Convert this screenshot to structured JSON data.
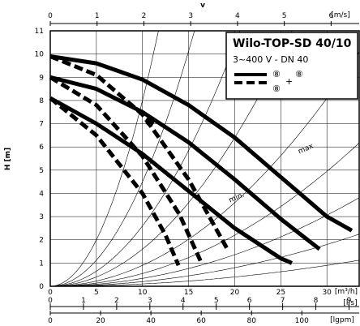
{
  "chart_data": {
    "type": "line",
    "title": "Wilo-TOP-SD 40/10",
    "subtitle": "3~400 V - DN 40",
    "ylabel": "H [m]",
    "xlabel": "[m³/h]",
    "ylim": [
      0,
      11
    ],
    "xlim": [
      0,
      33.5
    ],
    "grid": true,
    "legend": {
      "position": "top-right",
      "entries": [
        {
          "style": "solid",
          "symbol": "⑧"
        },
        {
          "style": "dashed",
          "symbols": [
            "⑧",
            "+",
            "⑧"
          ]
        }
      ]
    },
    "axes": {
      "velocity_top": {
        "label": "v",
        "unit": "[m/s]",
        "ticks": [
          "0",
          "1",
          "2",
          "3",
          "4",
          "5",
          "6"
        ],
        "tick_values": [
          0,
          1,
          2,
          3,
          4,
          5,
          6
        ],
        "max": 6.6
      },
      "flow_m3h": {
        "unit": "[m³/h]",
        "ticks": [
          "0",
          "5",
          "10",
          "15",
          "20",
          "25",
          "30"
        ],
        "tick_values": [
          0,
          5,
          10,
          15,
          20,
          25,
          30
        ]
      },
      "flow_ls": {
        "unit": "[l/s]",
        "ticks": [
          "0",
          "1",
          "2",
          "3",
          "4",
          "5",
          "6",
          "7",
          "8",
          "9"
        ],
        "tick_values": [
          0,
          1,
          2,
          3,
          4,
          5,
          6,
          7,
          8,
          9
        ]
      },
      "flow_lgpm": {
        "unit": "[lgpm]",
        "ticks": [
          "0",
          "20",
          "40",
          "60",
          "80",
          "100"
        ],
        "tick_values": [
          0,
          20,
          40,
          60,
          80,
          100
        ]
      },
      "head_ticks": [
        "0",
        "1",
        "2",
        "3",
        "4",
        "5",
        "6",
        "7",
        "8",
        "9",
        "10",
        "11"
      ]
    },
    "annotations": [
      {
        "text": "max",
        "x": 27.0,
        "y": 5.7
      },
      {
        "text": "min.",
        "x": 19.5,
        "y": 3.6
      }
    ],
    "series": [
      {
        "style": "solid",
        "x": [
          0,
          5,
          10,
          15,
          20,
          25,
          30,
          32.7
        ],
        "y": [
          9.9,
          9.6,
          8.9,
          7.8,
          6.4,
          4.7,
          3.0,
          2.4
        ]
      },
      {
        "style": "solid",
        "x": [
          0,
          5,
          10,
          15,
          20,
          25,
          29.2
        ],
        "y": [
          9.0,
          8.5,
          7.5,
          6.2,
          4.6,
          2.9,
          1.6
        ]
      },
      {
        "style": "solid",
        "x": [
          0,
          5,
          10,
          15,
          20,
          25,
          26.2
        ],
        "y": [
          8.1,
          7.0,
          5.7,
          4.1,
          2.5,
          1.2,
          1.0
        ]
      },
      {
        "style": "dashed",
        "x": [
          0,
          5,
          10,
          15,
          19.2
        ],
        "y": [
          9.9,
          9.1,
          7.4,
          4.6,
          1.6
        ]
      },
      {
        "style": "dashed",
        "x": [
          0,
          5,
          10,
          14,
          16.4
        ],
        "y": [
          9.0,
          7.8,
          5.6,
          3.1,
          1.0
        ]
      },
      {
        "style": "dashed",
        "x": [
          0,
          5,
          10,
          12.5,
          13.9
        ],
        "y": [
          8.1,
          6.5,
          4.0,
          2.2,
          0.9
        ]
      }
    ],
    "markers": [
      {
        "x": 10.8,
        "y": 7.1
      }
    ]
  },
  "colors": {
    "ink": "#000000",
    "background": "#ffffff",
    "grid": "#000000"
  }
}
